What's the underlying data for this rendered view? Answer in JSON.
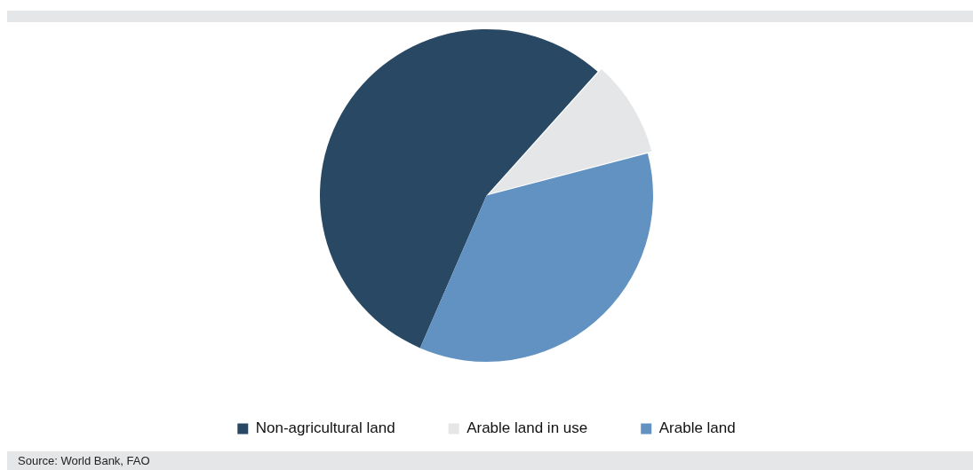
{
  "chart_data": {
    "type": "pie",
    "categories": [
      "Non-agricultural land",
      "Arable land in use",
      "Arable land"
    ],
    "values": [
      55.1,
      9.3,
      35.6
    ],
    "colors": [
      "#294864",
      "#e5e6e8",
      "#6192c1"
    ],
    "legend": "bottom",
    "annotations": [
      "Source: World Bank, FAO"
    ]
  }
}
